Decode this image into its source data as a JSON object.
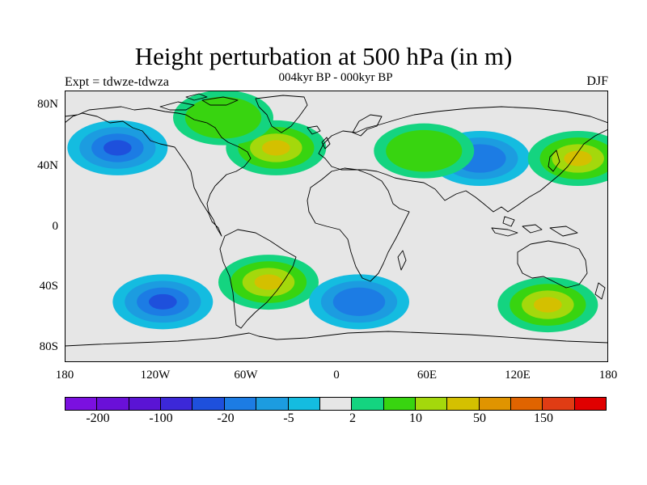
{
  "title": "Height perturbation at 500 hPa (in m)",
  "subtitle_left": "Expt = tdwze-tdwza",
  "subtitle_center": "004kyr BP - 000kyr BP",
  "subtitle_right": "DJF",
  "map": {
    "projection": "cylindrical equidistant",
    "background_color": "#e6e6e6",
    "lat_range": [
      -90,
      90
    ],
    "lon_range": [
      -180,
      180
    ],
    "lat_ticks": [
      "80N",
      "40N",
      "0",
      "40S",
      "80S"
    ],
    "lon_ticks": [
      "180",
      "120W",
      "60W",
      "0",
      "60E",
      "120E",
      "180"
    ]
  },
  "colorbar": {
    "colors": [
      "#7b10e0",
      "#6a10d8",
      "#5a14d4",
      "#3c28d8",
      "#1e50dc",
      "#1c7ce4",
      "#1c9ce0",
      "#14bce0",
      "#e6e6e6",
      "#14d480",
      "#38d410",
      "#a4d80c",
      "#d4c000",
      "#e09400",
      "#e06400",
      "#e03c14",
      "#e00000"
    ],
    "labels": [
      "-200",
      "-100",
      "-20",
      "-5",
      "2",
      "10",
      "50",
      "150"
    ]
  },
  "anomalies": [
    {
      "name": "north-pacific-low",
      "lon": -145,
      "lat": 52,
      "value": -50
    },
    {
      "name": "north-atlantic-high",
      "lon": -40,
      "lat": 52,
      "value": 50
    },
    {
      "name": "greenland-high",
      "lon": -75,
      "lat": 72,
      "value": 10
    },
    {
      "name": "eurasia-low",
      "lon": 95,
      "lat": 45,
      "value": -20
    },
    {
      "name": "central-asia-high",
      "lon": 58,
      "lat": 50,
      "value": 10
    },
    {
      "name": "northwest-pacific-high",
      "lon": 160,
      "lat": 45,
      "value": 50
    },
    {
      "name": "south-pacific-low",
      "lon": -115,
      "lat": -50,
      "value": -50
    },
    {
      "name": "south-atlantic-high",
      "lon": -45,
      "lat": -37,
      "value": 50
    },
    {
      "name": "south-indian-low",
      "lon": 15,
      "lat": -50,
      "value": -20
    },
    {
      "name": "australia-south-high",
      "lon": 140,
      "lat": -52,
      "value": 50
    }
  ]
}
